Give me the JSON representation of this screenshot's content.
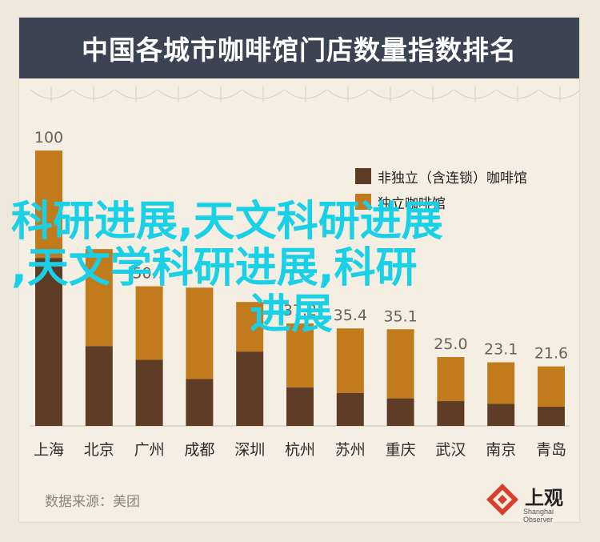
{
  "title": "中国各城市咖啡馆门店数量指数排名",
  "legend": {
    "items": [
      {
        "label": "非独立（含连锁）咖啡馆",
        "color": "#5e3c25"
      },
      {
        "label": "独立咖啡馆",
        "color": "#c17a1c"
      }
    ]
  },
  "source": "数据来源：美团",
  "logo": {
    "text": "上观",
    "sub": "Shanghai Observer"
  },
  "watermark": {
    "line1": "科研进展,天文科研进展",
    "line2": ",天文学科研进展,科研",
    "line3": "进展"
  },
  "chart_data": {
    "type": "bar",
    "stacked": true,
    "categories": [
      "上海",
      "北京",
      "广州",
      "成都",
      "深圳",
      "杭州",
      "苏州",
      "重庆",
      "武汉",
      "南京",
      "青岛"
    ],
    "totals": [
      100,
      64.2,
      50.7,
      50.2,
      45.0,
      37.2,
      35.4,
      35.1,
      25.0,
      23.1,
      21.6
    ],
    "total_labels": [
      "100",
      "",
      "50.7",
      "",
      "",
      "37.2",
      "35.4",
      "35.1",
      "25.0",
      "23.1",
      "21.6"
    ],
    "series": [
      {
        "name": "非独立（含连锁）咖啡馆",
        "values": [
          61,
          29,
          24,
          17,
          27,
          14,
          12,
          10,
          9,
          8,
          7
        ]
      },
      {
        "name": "独立咖啡馆",
        "values": [
          39,
          35.2,
          26.7,
          33.2,
          18,
          23.2,
          23.4,
          25.1,
          16,
          15.1,
          14.6
        ]
      }
    ],
    "ylim": [
      0,
      100
    ],
    "grid": false
  },
  "colors": {
    "title_band": "#3c4353",
    "background": "#f4eee3"
  }
}
